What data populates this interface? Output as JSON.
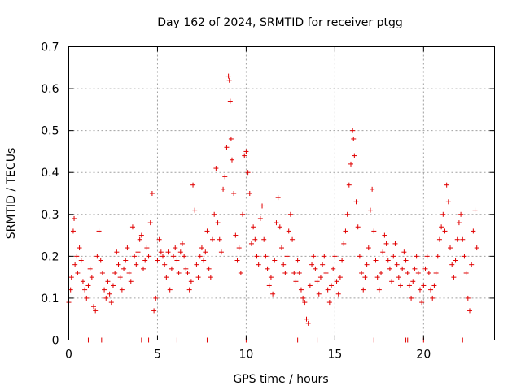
{
  "chart_data": {
    "type": "scatter",
    "title": "Day 162 of 2024, SRMTID for receiver ptgg",
    "xlabel": "GPS time / hours",
    "ylabel": "SRMTID / TECUs",
    "xlim": [
      0,
      24
    ],
    "ylim": [
      0,
      0.7
    ],
    "x_ticks": [
      0,
      5,
      10,
      15,
      20
    ],
    "x_tick_labels": [
      "0",
      "5",
      "10",
      "15",
      "20"
    ],
    "y_ticks": [
      0,
      0.1,
      0.2,
      0.3,
      0.4,
      0.5,
      0.6,
      0.7
    ],
    "y_tick_labels": [
      "0",
      "0.1",
      "0.2",
      "0.3",
      "0.4",
      "0.5",
      "0.6",
      "0.7"
    ],
    "grid": true,
    "marker": "+",
    "color": "#e00000",
    "series": [
      {
        "name": "SRMTID",
        "points": [
          [
            0.0,
            0.09
          ],
          [
            0.1,
            0.12
          ],
          [
            0.15,
            0.15
          ],
          [
            0.25,
            0.26
          ],
          [
            0.3,
            0.29
          ],
          [
            0.35,
            0.18
          ],
          [
            0.45,
            0.2
          ],
          [
            0.5,
            0.16
          ],
          [
            0.6,
            0.22
          ],
          [
            0.7,
            0.19
          ],
          [
            0.8,
            0.14
          ],
          [
            0.9,
            0.12
          ],
          [
            1.0,
            0.1
          ],
          [
            1.1,
            0.13
          ],
          [
            1.2,
            0.17
          ],
          [
            1.3,
            0.15
          ],
          [
            1.4,
            0.08
          ],
          [
            1.5,
            0.07
          ],
          [
            1.6,
            0.2
          ],
          [
            1.7,
            0.26
          ],
          [
            1.8,
            0.19
          ],
          [
            1.9,
            0.16
          ],
          [
            2.0,
            0.12
          ],
          [
            2.1,
            0.1
          ],
          [
            2.2,
            0.14
          ],
          [
            2.3,
            0.11
          ],
          [
            2.4,
            0.09
          ],
          [
            2.5,
            0.13
          ],
          [
            2.6,
            0.16
          ],
          [
            2.7,
            0.21
          ],
          [
            2.8,
            0.18
          ],
          [
            2.9,
            0.15
          ],
          [
            3.0,
            0.12
          ],
          [
            3.1,
            0.17
          ],
          [
            3.2,
            0.19
          ],
          [
            3.3,
            0.22
          ],
          [
            3.4,
            0.16
          ],
          [
            3.5,
            0.14
          ],
          [
            3.6,
            0.27
          ],
          [
            3.7,
            0.2
          ],
          [
            3.8,
            0.18
          ],
          [
            3.9,
            0.21
          ],
          [
            4.0,
            0.24
          ],
          [
            4.1,
            0.25
          ],
          [
            4.2,
            0.17
          ],
          [
            4.3,
            0.19
          ],
          [
            4.4,
            0.22
          ],
          [
            4.5,
            0.2
          ],
          [
            4.6,
            0.28
          ],
          [
            4.7,
            0.35
          ],
          [
            4.8,
            0.07
          ],
          [
            4.9,
            0.1
          ],
          [
            5.0,
            0.19
          ],
          [
            5.1,
            0.24
          ],
          [
            5.2,
            0.21
          ],
          [
            5.3,
            0.2
          ],
          [
            5.4,
            0.18
          ],
          [
            5.5,
            0.15
          ],
          [
            5.6,
            0.21
          ],
          [
            5.7,
            0.12
          ],
          [
            5.8,
            0.17
          ],
          [
            5.9,
            0.2
          ],
          [
            6.0,
            0.22
          ],
          [
            6.1,
            0.19
          ],
          [
            6.2,
            0.16
          ],
          [
            6.3,
            0.21
          ],
          [
            6.4,
            0.23
          ],
          [
            6.5,
            0.2
          ],
          [
            6.6,
            0.17
          ],
          [
            6.7,
            0.16
          ],
          [
            6.8,
            0.12
          ],
          [
            6.9,
            0.14
          ],
          [
            7.0,
            0.37
          ],
          [
            7.1,
            0.31
          ],
          [
            7.2,
            0.18
          ],
          [
            7.3,
            0.15
          ],
          [
            7.4,
            0.2
          ],
          [
            7.5,
            0.22
          ],
          [
            7.6,
            0.19
          ],
          [
            7.7,
            0.21
          ],
          [
            7.8,
            0.26
          ],
          [
            7.9,
            0.17
          ],
          [
            8.0,
            0.15
          ],
          [
            8.1,
            0.24
          ],
          [
            8.2,
            0.3
          ],
          [
            8.3,
            0.41
          ],
          [
            8.4,
            0.28
          ],
          [
            8.5,
            0.24
          ],
          [
            8.6,
            0.21
          ],
          [
            8.7,
            0.36
          ],
          [
            8.8,
            0.39
          ],
          [
            8.9,
            0.46
          ],
          [
            9.0,
            0.63
          ],
          [
            9.05,
            0.62
          ],
          [
            9.1,
            0.57
          ],
          [
            9.15,
            0.48
          ],
          [
            9.2,
            0.43
          ],
          [
            9.3,
            0.35
          ],
          [
            9.4,
            0.25
          ],
          [
            9.5,
            0.19
          ],
          [
            9.6,
            0.22
          ],
          [
            9.7,
            0.16
          ],
          [
            9.8,
            0.3
          ],
          [
            9.9,
            0.44
          ],
          [
            10.0,
            0.45
          ],
          [
            10.1,
            0.4
          ],
          [
            10.2,
            0.35
          ],
          [
            10.3,
            0.23
          ],
          [
            10.4,
            0.27
          ],
          [
            10.5,
            0.24
          ],
          [
            10.6,
            0.2
          ],
          [
            10.7,
            0.18
          ],
          [
            10.8,
            0.29
          ],
          [
            10.9,
            0.32
          ],
          [
            11.0,
            0.24
          ],
          [
            11.1,
            0.2
          ],
          [
            11.2,
            0.17
          ],
          [
            11.3,
            0.13
          ],
          [
            11.4,
            0.15
          ],
          [
            11.5,
            0.11
          ],
          [
            11.6,
            0.19
          ],
          [
            11.7,
            0.28
          ],
          [
            11.8,
            0.34
          ],
          [
            11.9,
            0.27
          ],
          [
            12.0,
            0.22
          ],
          [
            12.1,
            0.18
          ],
          [
            12.2,
            0.16
          ],
          [
            12.3,
            0.2
          ],
          [
            12.4,
            0.26
          ],
          [
            12.5,
            0.3
          ],
          [
            12.6,
            0.24
          ],
          [
            12.7,
            0.16
          ],
          [
            12.8,
            0.14
          ],
          [
            12.9,
            0.19
          ],
          [
            13.0,
            0.16
          ],
          [
            13.1,
            0.12
          ],
          [
            13.2,
            0.1
          ],
          [
            13.3,
            0.09
          ],
          [
            13.4,
            0.05
          ],
          [
            13.5,
            0.04
          ],
          [
            13.6,
            0.13
          ],
          [
            13.7,
            0.18
          ],
          [
            13.8,
            0.2
          ],
          [
            13.9,
            0.17
          ],
          [
            14.0,
            0.14
          ],
          [
            14.1,
            0.11
          ],
          [
            14.2,
            0.15
          ],
          [
            14.3,
            0.18
          ],
          [
            14.4,
            0.2
          ],
          [
            14.5,
            0.16
          ],
          [
            14.6,
            0.12
          ],
          [
            14.7,
            0.09
          ],
          [
            14.8,
            0.13
          ],
          [
            14.9,
            0.17
          ],
          [
            15.0,
            0.2
          ],
          [
            15.1,
            0.14
          ],
          [
            15.2,
            0.11
          ],
          [
            15.3,
            0.15
          ],
          [
            15.4,
            0.19
          ],
          [
            15.5,
            0.23
          ],
          [
            15.6,
            0.26
          ],
          [
            15.7,
            0.3
          ],
          [
            15.8,
            0.37
          ],
          [
            15.9,
            0.42
          ],
          [
            16.0,
            0.5
          ],
          [
            16.05,
            0.48
          ],
          [
            16.1,
            0.44
          ],
          [
            16.2,
            0.33
          ],
          [
            16.3,
            0.27
          ],
          [
            16.4,
            0.2
          ],
          [
            16.5,
            0.16
          ],
          [
            16.6,
            0.12
          ],
          [
            16.7,
            0.15
          ],
          [
            16.8,
            0.18
          ],
          [
            16.9,
            0.22
          ],
          [
            17.0,
            0.31
          ],
          [
            17.1,
            0.36
          ],
          [
            17.2,
            0.26
          ],
          [
            17.3,
            0.19
          ],
          [
            17.4,
            0.15
          ],
          [
            17.5,
            0.12
          ],
          [
            17.6,
            0.16
          ],
          [
            17.7,
            0.21
          ],
          [
            17.8,
            0.25
          ],
          [
            17.9,
            0.23
          ],
          [
            18.0,
            0.19
          ],
          [
            18.1,
            0.17
          ],
          [
            18.2,
            0.14
          ],
          [
            18.3,
            0.2
          ],
          [
            18.4,
            0.23
          ],
          [
            18.5,
            0.18
          ],
          [
            18.6,
            0.15
          ],
          [
            18.7,
            0.13
          ],
          [
            18.8,
            0.17
          ],
          [
            18.9,
            0.21
          ],
          [
            19.0,
            0.19
          ],
          [
            19.1,
            0.16
          ],
          [
            19.2,
            0.13
          ],
          [
            19.3,
            0.1
          ],
          [
            19.4,
            0.14
          ],
          [
            19.5,
            0.17
          ],
          [
            19.6,
            0.2
          ],
          [
            19.7,
            0.16
          ],
          [
            19.8,
            0.12
          ],
          [
            19.9,
            0.09
          ],
          [
            20.0,
            0.13
          ],
          [
            20.1,
            0.17
          ],
          [
            20.2,
            0.2
          ],
          [
            20.3,
            0.16
          ],
          [
            20.4,
            0.12
          ],
          [
            20.5,
            0.1
          ],
          [
            20.6,
            0.13
          ],
          [
            20.7,
            0.16
          ],
          [
            20.8,
            0.2
          ],
          [
            20.9,
            0.24
          ],
          [
            21.0,
            0.27
          ],
          [
            21.1,
            0.3
          ],
          [
            21.2,
            0.26
          ],
          [
            21.3,
            0.37
          ],
          [
            21.4,
            0.33
          ],
          [
            21.5,
            0.22
          ],
          [
            21.6,
            0.18
          ],
          [
            21.7,
            0.15
          ],
          [
            21.8,
            0.19
          ],
          [
            21.9,
            0.24
          ],
          [
            22.0,
            0.28
          ],
          [
            22.1,
            0.3
          ],
          [
            22.2,
            0.24
          ],
          [
            22.3,
            0.2
          ],
          [
            22.4,
            0.16
          ],
          [
            22.5,
            0.1
          ],
          [
            22.6,
            0.07
          ],
          [
            22.7,
            0.18
          ],
          [
            22.8,
            0.26
          ],
          [
            22.9,
            0.31
          ],
          [
            23.0,
            0.22
          ]
        ],
        "zero_points": [
          1.1,
          1.85,
          3.9,
          4.1,
          4.5,
          6.1,
          7.8,
          10.0,
          12.9,
          14.0,
          17.2,
          19.0,
          19.1,
          20.0,
          22.2
        ]
      }
    ]
  }
}
